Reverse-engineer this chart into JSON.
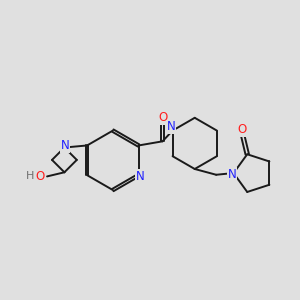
{
  "background_color": "#e0e0e0",
  "bond_color": "#1a1a1a",
  "atom_colors": {
    "N": "#2020ff",
    "O": "#ff2020",
    "H": "#707070",
    "C": "#1a1a1a"
  },
  "bond_width": 1.4,
  "font_size_atom": 8.5,
  "figsize": [
    3.0,
    3.0
  ],
  "dpi": 100
}
